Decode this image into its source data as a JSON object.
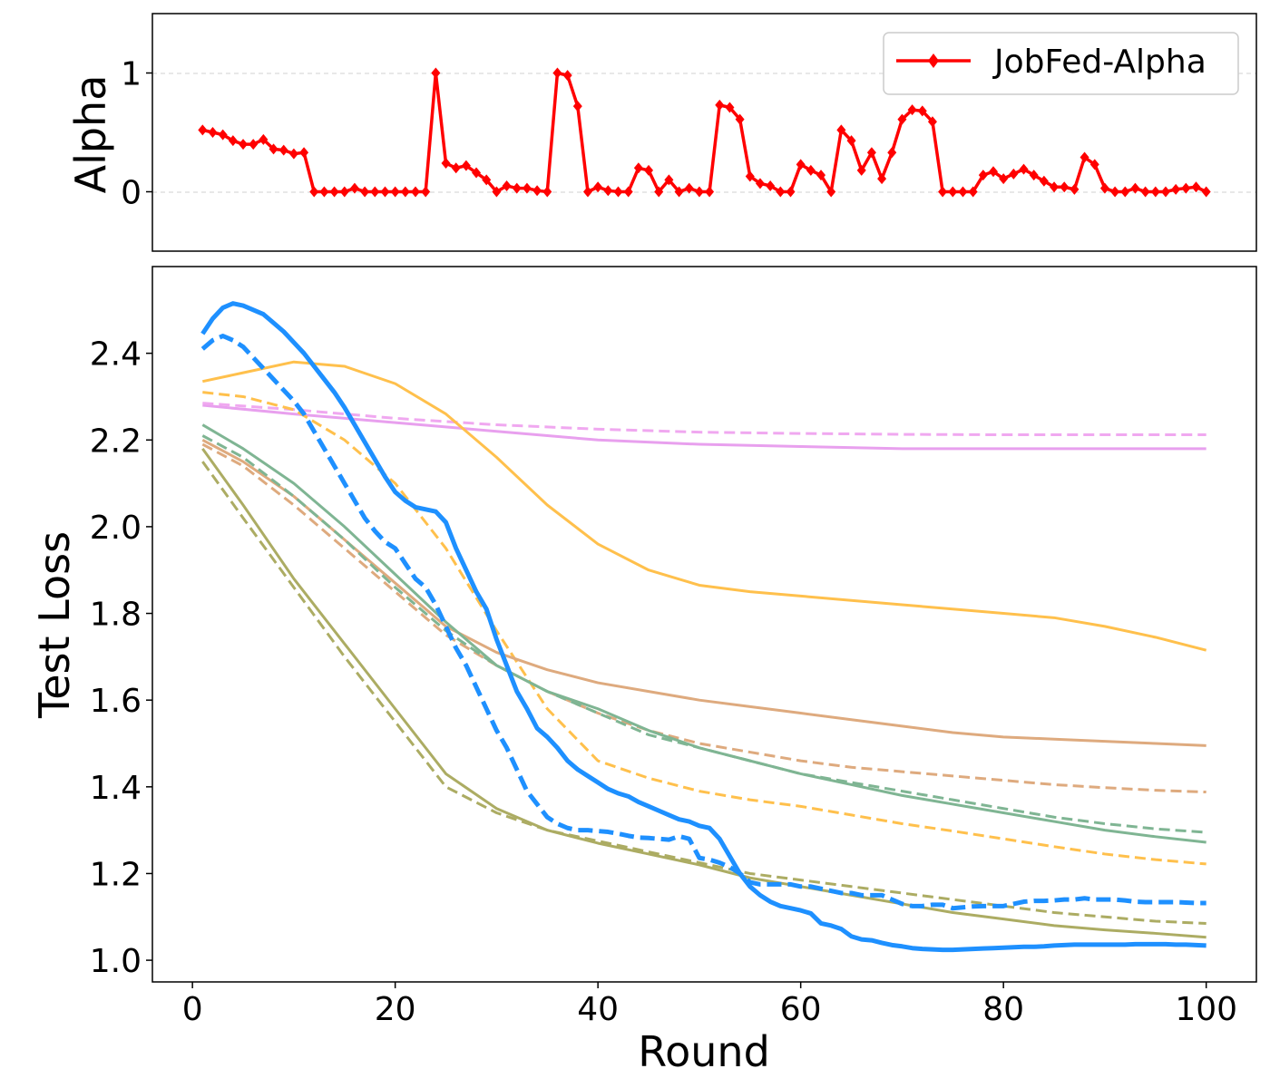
{
  "chart_data": [
    {
      "type": "line",
      "ylabel": "Alpha",
      "xlim": [
        -3.95,
        104.95
      ],
      "ylim": [
        -0.5,
        1.5
      ],
      "yticks": [
        0,
        1
      ],
      "grid": "horizontal dashed",
      "legend": {
        "placement": "top-right",
        "entries": [
          "JobFed-Alpha"
        ]
      },
      "series": [
        {
          "name": "JobFed-Alpha",
          "color": "#ff0000",
          "marker": "diamond",
          "x": [
            1,
            2,
            3,
            4,
            5,
            6,
            7,
            8,
            9,
            10,
            11,
            12,
            13,
            14,
            15,
            16,
            17,
            18,
            19,
            20,
            21,
            22,
            23,
            24,
            25,
            26,
            27,
            28,
            29,
            30,
            31,
            32,
            33,
            34,
            35,
            36,
            37,
            38,
            39,
            40,
            41,
            42,
            43,
            44,
            45,
            46,
            47,
            48,
            49,
            50,
            51,
            52,
            53,
            54,
            55,
            56,
            57,
            58,
            59,
            60,
            61,
            62,
            63,
            64,
            65,
            66,
            67,
            68,
            69,
            70,
            71,
            72,
            73,
            74,
            75,
            76,
            77,
            78,
            79,
            80,
            81,
            82,
            83,
            84,
            85,
            86,
            87,
            88,
            89,
            90,
            91,
            92,
            93,
            94,
            95,
            96,
            97,
            98,
            99,
            100
          ],
          "values": [
            0.52,
            0.5,
            0.48,
            0.43,
            0.4,
            0.4,
            0.44,
            0.36,
            0.35,
            0.32,
            0.33,
            0,
            0,
            0,
            0,
            0.03,
            0,
            0,
            0,
            0,
            0,
            0,
            0,
            1.0,
            0.24,
            0.2,
            0.22,
            0.16,
            0.1,
            0,
            0.05,
            0.03,
            0.03,
            0.01,
            0,
            1.0,
            0.98,
            0.72,
            0,
            0.04,
            0.01,
            0,
            0,
            0.2,
            0.18,
            0,
            0.1,
            0,
            0.03,
            0,
            0,
            0.73,
            0.71,
            0.61,
            0.13,
            0.07,
            0.05,
            0,
            0,
            0.23,
            0.18,
            0.14,
            0,
            0.52,
            0.43,
            0.18,
            0.33,
            0.11,
            0.33,
            0.61,
            0.69,
            0.68,
            0.59,
            0,
            0,
            0,
            0,
            0.14,
            0.17,
            0.11,
            0.15,
            0.19,
            0.14,
            0.09,
            0.04,
            0.04,
            0.02,
            0.29,
            0.23,
            0.03,
            0,
            0,
            0.03,
            0,
            0,
            0,
            0.02,
            0.03,
            0.04,
            0
          ]
        }
      ]
    },
    {
      "type": "line",
      "xlabel": "Round",
      "ylabel": "Test Loss",
      "xlim": [
        -3.95,
        104.95
      ],
      "ylim": [
        0.95,
        2.6
      ],
      "xticks": [
        0,
        20,
        40,
        60,
        80,
        100
      ],
      "yticks": [
        1.0,
        1.2,
        1.4,
        1.6,
        1.8,
        2.0,
        2.2,
        2.4
      ],
      "yticklabels": [
        "1.0",
        "1.2",
        "1.4",
        "1.6",
        "1.8",
        "2.0",
        "2.2",
        "2.4"
      ],
      "grid": "off",
      "series": [
        {
          "color": "#e8a0ee",
          "dash": "solid",
          "width": 3,
          "x": [
            1,
            10,
            20,
            30,
            40,
            50,
            60,
            70,
            80,
            90,
            100
          ],
          "values": [
            2.28,
            2.26,
            2.24,
            2.22,
            2.2,
            2.19,
            2.185,
            2.18,
            2.18,
            2.18,
            2.18
          ]
        },
        {
          "color": "#f0a8f0",
          "dash": "dashed",
          "width": 3,
          "x": [
            1,
            10,
            20,
            30,
            40,
            50,
            60,
            70,
            80,
            90,
            100
          ],
          "values": [
            2.285,
            2.27,
            2.25,
            2.235,
            2.225,
            2.218,
            2.215,
            2.213,
            2.212,
            2.212,
            2.212
          ]
        },
        {
          "color": "#ffc04c",
          "dash": "solid",
          "width": 3,
          "x": [
            1,
            5,
            10,
            15,
            20,
            25,
            30,
            35,
            40,
            45,
            50,
            55,
            60,
            65,
            70,
            75,
            80,
            85,
            90,
            95,
            100
          ],
          "values": [
            2.335,
            2.355,
            2.38,
            2.37,
            2.33,
            2.26,
            2.16,
            2.05,
            1.96,
            1.9,
            1.865,
            1.85,
            1.84,
            1.83,
            1.82,
            1.81,
            1.8,
            1.79,
            1.77,
            1.745,
            1.715
          ]
        },
        {
          "color": "#ffc04c",
          "dash": "dashed",
          "width": 3,
          "x": [
            1,
            5,
            10,
            15,
            20,
            25,
            30,
            35,
            40,
            45,
            50,
            55,
            60,
            65,
            70,
            75,
            80,
            85,
            90,
            95,
            100
          ],
          "values": [
            2.31,
            2.3,
            2.27,
            2.2,
            2.1,
            1.95,
            1.76,
            1.58,
            1.46,
            1.42,
            1.39,
            1.37,
            1.355,
            1.335,
            1.315,
            1.298,
            1.28,
            1.262,
            1.245,
            1.232,
            1.222
          ]
        },
        {
          "color": "#deaa7e",
          "dash": "solid",
          "width": 3,
          "x": [
            1,
            5,
            10,
            15,
            20,
            25,
            30,
            35,
            40,
            45,
            50,
            55,
            60,
            65,
            70,
            75,
            80,
            85,
            90,
            95,
            100
          ],
          "values": [
            2.2,
            2.15,
            2.07,
            1.97,
            1.87,
            1.77,
            1.71,
            1.67,
            1.64,
            1.62,
            1.6,
            1.585,
            1.57,
            1.555,
            1.54,
            1.525,
            1.515,
            1.51,
            1.505,
            1.5,
            1.495
          ]
        },
        {
          "color": "#deaa7e",
          "dash": "dashed",
          "width": 3,
          "x": [
            1,
            5,
            10,
            15,
            20,
            25,
            30,
            35,
            40,
            45,
            50,
            55,
            60,
            65,
            70,
            75,
            80,
            85,
            90,
            95,
            100
          ],
          "values": [
            2.19,
            2.14,
            2.05,
            1.95,
            1.85,
            1.75,
            1.68,
            1.62,
            1.57,
            1.53,
            1.5,
            1.48,
            1.46,
            1.445,
            1.435,
            1.425,
            1.415,
            1.405,
            1.398,
            1.392,
            1.388
          ]
        },
        {
          "color": "#7fb593",
          "dash": "solid",
          "width": 3,
          "x": [
            1,
            5,
            10,
            15,
            20,
            25,
            30,
            35,
            40,
            45,
            50,
            55,
            60,
            65,
            70,
            75,
            80,
            85,
            90,
            95,
            100
          ],
          "values": [
            2.235,
            2.18,
            2.1,
            2.0,
            1.89,
            1.78,
            1.68,
            1.62,
            1.58,
            1.53,
            1.49,
            1.46,
            1.43,
            1.405,
            1.38,
            1.36,
            1.34,
            1.32,
            1.3,
            1.285,
            1.272
          ]
        },
        {
          "color": "#7fb593",
          "dash": "dashed",
          "width": 3,
          "x": [
            1,
            5,
            10,
            15,
            20,
            25,
            30,
            35,
            40,
            45,
            50,
            55,
            60,
            65,
            70,
            75,
            80,
            85,
            90,
            95,
            100
          ],
          "values": [
            2.21,
            2.16,
            2.07,
            1.97,
            1.86,
            1.76,
            1.68,
            1.62,
            1.57,
            1.52,
            1.49,
            1.46,
            1.43,
            1.41,
            1.39,
            1.37,
            1.35,
            1.33,
            1.315,
            1.303,
            1.295
          ]
        },
        {
          "color": "#acac63",
          "dash": "solid",
          "width": 3,
          "x": [
            1,
            5,
            10,
            15,
            20,
            25,
            30,
            35,
            40,
            45,
            50,
            55,
            60,
            65,
            70,
            75,
            80,
            85,
            90,
            95,
            100
          ],
          "values": [
            2.18,
            2.05,
            1.88,
            1.73,
            1.58,
            1.43,
            1.35,
            1.3,
            1.27,
            1.245,
            1.22,
            1.19,
            1.17,
            1.15,
            1.13,
            1.11,
            1.095,
            1.08,
            1.07,
            1.062,
            1.053
          ]
        },
        {
          "color": "#acac63",
          "dash": "dashed",
          "width": 3,
          "x": [
            1,
            5,
            10,
            15,
            20,
            25,
            30,
            35,
            40,
            45,
            50,
            55,
            60,
            65,
            70,
            75,
            80,
            85,
            90,
            95,
            100
          ],
          "values": [
            2.15,
            2.02,
            1.86,
            1.7,
            1.55,
            1.4,
            1.34,
            1.3,
            1.275,
            1.25,
            1.225,
            1.2,
            1.185,
            1.17,
            1.155,
            1.14,
            1.125,
            1.11,
            1.1,
            1.09,
            1.085
          ]
        },
        {
          "color": "#1e90ff",
          "dash": "solid",
          "width": 5,
          "x": [
            1,
            2,
            3,
            4,
            5,
            6,
            7,
            8,
            9,
            10,
            11,
            12,
            13,
            14,
            15,
            16,
            17,
            18,
            19,
            20,
            21,
            22,
            23,
            24,
            25,
            26,
            27,
            28,
            29,
            30,
            31,
            32,
            33,
            34,
            35,
            36,
            37,
            38,
            39,
            40,
            41,
            42,
            43,
            44,
            45,
            46,
            47,
            48,
            49,
            50,
            51,
            52,
            53,
            54,
            55,
            56,
            57,
            58,
            59,
            60,
            61,
            62,
            63,
            64,
            65,
            66,
            67,
            68,
            69,
            70,
            71,
            72,
            73,
            74,
            75,
            76,
            77,
            78,
            79,
            80,
            81,
            82,
            83,
            84,
            85,
            86,
            87,
            88,
            89,
            90,
            91,
            92,
            93,
            94,
            95,
            96,
            97,
            98,
            99,
            100
          ],
          "values": [
            2.445,
            2.48,
            2.505,
            2.515,
            2.51,
            2.5,
            2.49,
            2.47,
            2.45,
            2.425,
            2.4,
            2.37,
            2.34,
            2.31,
            2.275,
            2.235,
            2.195,
            2.155,
            2.115,
            2.08,
            2.06,
            2.045,
            2.04,
            2.035,
            2.01,
            1.95,
            1.9,
            1.85,
            1.81,
            1.74,
            1.68,
            1.62,
            1.58,
            1.535,
            1.515,
            1.49,
            1.46,
            1.44,
            1.425,
            1.41,
            1.395,
            1.385,
            1.378,
            1.365,
            1.355,
            1.345,
            1.335,
            1.325,
            1.32,
            1.31,
            1.305,
            1.28,
            1.24,
            1.2,
            1.17,
            1.15,
            1.135,
            1.125,
            1.12,
            1.115,
            1.108,
            1.085,
            1.08,
            1.072,
            1.055,
            1.048,
            1.046,
            1.04,
            1.035,
            1.032,
            1.028,
            1.026,
            1.025,
            1.024,
            1.024,
            1.025,
            1.026,
            1.027,
            1.028,
            1.029,
            1.03,
            1.031,
            1.031,
            1.032,
            1.034,
            1.035,
            1.036,
            1.036,
            1.036,
            1.036,
            1.036,
            1.036,
            1.037,
            1.037,
            1.037,
            1.037,
            1.036,
            1.036,
            1.035,
            1.034
          ]
        },
        {
          "color": "#1e90ff",
          "dash": "dashed",
          "width": 5,
          "x": [
            1,
            2,
            3,
            4,
            5,
            6,
            7,
            8,
            9,
            10,
            11,
            12,
            13,
            14,
            15,
            16,
            17,
            18,
            19,
            20,
            21,
            22,
            23,
            24,
            25,
            26,
            27,
            28,
            29,
            30,
            31,
            32,
            33,
            34,
            35,
            36,
            37,
            38,
            39,
            40,
            41,
            42,
            43,
            44,
            45,
            46,
            47,
            48,
            49,
            50,
            51,
            52,
            53,
            54,
            55,
            56,
            57,
            58,
            59,
            60,
            61,
            62,
            63,
            64,
            65,
            66,
            67,
            68,
            69,
            70,
            71,
            72,
            73,
            74,
            75,
            76,
            77,
            78,
            79,
            80,
            81,
            82,
            83,
            84,
            85,
            86,
            87,
            88,
            89,
            90,
            91,
            92,
            93,
            94,
            95,
            96,
            97,
            98,
            99,
            100
          ],
          "values": [
            2.41,
            2.43,
            2.44,
            2.43,
            2.415,
            2.39,
            2.365,
            2.34,
            2.315,
            2.29,
            2.26,
            2.22,
            2.18,
            2.14,
            2.1,
            2.06,
            2.02,
            1.99,
            1.965,
            1.95,
            1.915,
            1.88,
            1.86,
            1.82,
            1.77,
            1.72,
            1.68,
            1.63,
            1.58,
            1.53,
            1.49,
            1.44,
            1.39,
            1.36,
            1.33,
            1.315,
            1.305,
            1.3,
            1.3,
            1.298,
            1.296,
            1.292,
            1.287,
            1.283,
            1.282,
            1.28,
            1.278,
            1.286,
            1.28,
            1.236,
            1.232,
            1.225,
            1.215,
            1.2,
            1.18,
            1.175,
            1.175,
            1.175,
            1.175,
            1.17,
            1.17,
            1.165,
            1.16,
            1.155,
            1.155,
            1.15,
            1.15,
            1.15,
            1.14,
            1.13,
            1.125,
            1.125,
            1.128,
            1.128,
            1.12,
            1.122,
            1.124,
            1.125,
            1.125,
            1.125,
            1.13,
            1.135,
            1.137,
            1.137,
            1.138,
            1.14,
            1.14,
            1.143,
            1.14,
            1.14,
            1.14,
            1.138,
            1.135,
            1.134,
            1.134,
            1.134,
            1.134,
            1.133,
            1.132,
            1.132
          ]
        }
      ]
    }
  ]
}
